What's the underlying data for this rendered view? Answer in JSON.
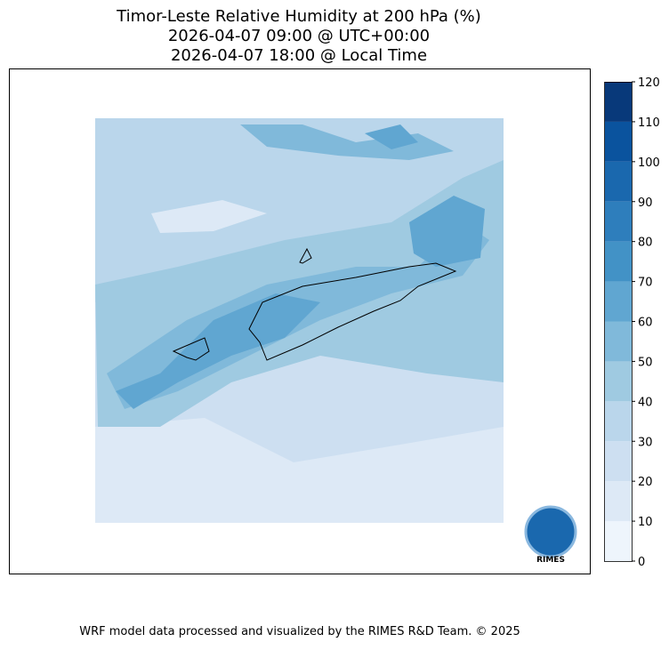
{
  "title": [
    "Timor-Leste Relative Humidity at 200 hPa (%)",
    "2026-04-07 09:00 @ UTC+00:00",
    "2026-04-07 18:00 @ Local Time"
  ],
  "colorbar": {
    "lim": [
      0,
      120
    ],
    "ticks": [
      0,
      10,
      20,
      30,
      40,
      50,
      60,
      70,
      80,
      90,
      100,
      110,
      120
    ],
    "colors": [
      "#eef5fc",
      "#dde9f6",
      "#cddff1",
      "#bad6eb",
      "#9fcae1",
      "#80b9da",
      "#60a6d1",
      "#4292c6",
      "#2e7ebc",
      "#1a68ae",
      "#0a539e",
      "#08397a"
    ]
  },
  "logo": "RIMES",
  "footer": "WRF model data processed and visualized by the RIMES R&D Team. © 2025"
}
